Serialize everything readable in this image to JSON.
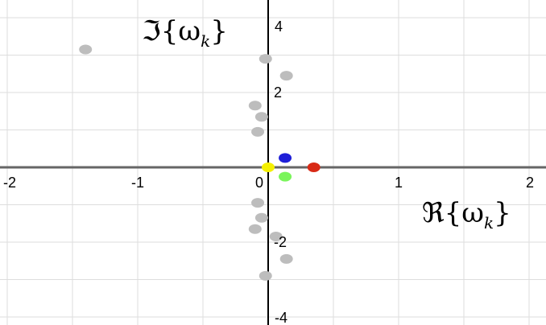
{
  "chart_data": {
    "type": "scatter",
    "xlabel": "ℜ{ω_k}",
    "ylabel": "ℑ{ω_k}",
    "xlim": [
      -2,
      2.05
    ],
    "ylim": [
      -4,
      4.1
    ],
    "grid": true,
    "x_ticks": [
      -2,
      -1,
      0,
      1,
      2
    ],
    "y_ticks": [
      -4,
      -2,
      2,
      4
    ],
    "x_tick_labels": [
      "-2",
      "-1",
      "0",
      "1",
      "2"
    ],
    "y_tick_labels": [
      "-4",
      "-2",
      "2",
      "4"
    ],
    "points": [
      {
        "x": -1.4,
        "y": 3.15,
        "color": "#bdbdbd"
      },
      {
        "x": -0.02,
        "y": 2.9,
        "color": "#bdbdbd"
      },
      {
        "x": 0.14,
        "y": 2.45,
        "color": "#bdbdbd"
      },
      {
        "x": -0.1,
        "y": 1.65,
        "color": "#bdbdbd"
      },
      {
        "x": -0.05,
        "y": 1.35,
        "color": "#bdbdbd"
      },
      {
        "x": -0.08,
        "y": 0.95,
        "color": "#bdbdbd"
      },
      {
        "x": 0.13,
        "y": 0.25,
        "color": "#1f1fd8"
      },
      {
        "x": 0.0,
        "y": 0.0,
        "color": "#f4f000"
      },
      {
        "x": 0.35,
        "y": 0.0,
        "color": "#d82a16"
      },
      {
        "x": 0.13,
        "y": -0.25,
        "color": "#7af55b"
      },
      {
        "x": -0.08,
        "y": -0.95,
        "color": "#bdbdbd"
      },
      {
        "x": -0.05,
        "y": -1.35,
        "color": "#bdbdbd"
      },
      {
        "x": -0.1,
        "y": -1.65,
        "color": "#bdbdbd"
      },
      {
        "x": 0.06,
        "y": -1.85,
        "color": "#bdbdbd"
      },
      {
        "x": 0.14,
        "y": -2.45,
        "color": "#bdbdbd"
      },
      {
        "x": -0.02,
        "y": -2.9,
        "color": "#bdbdbd"
      }
    ]
  },
  "colors": {
    "background": "#ffffff",
    "grid": "#dddddd",
    "x_axis": "#666666",
    "y_axis": "#000000",
    "text": "#000000"
  }
}
